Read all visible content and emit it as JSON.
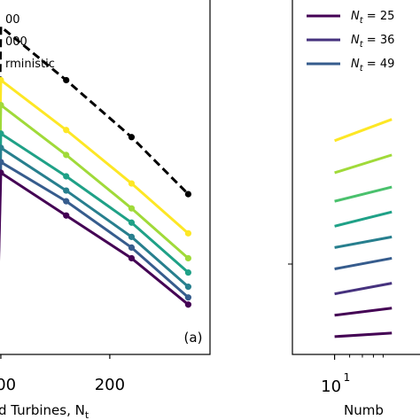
{
  "colors": {
    "yellow": "#fde725",
    "light_green": "#a0da39",
    "green": "#4ac16d",
    "teal": "#1fa187",
    "teal_blue": "#277f8e",
    "blue": "#365c8d",
    "indigo": "#46327e",
    "purple": "#440154",
    "black": "#000000"
  },
  "chart_data": [
    {
      "panel": "a",
      "type": "line",
      "panel_label": "(a)",
      "xlabel": "d Turbines, N",
      "xlabel_sub": "t",
      "xlim": [
        -3,
        240
      ],
      "ylim": [
        0,
        100
      ],
      "x_ticks": [
        {
          "value": 0,
          "label": "100"
        },
        {
          "value": 125,
          "label": "200"
        }
      ],
      "legend": {
        "placement": "top-left",
        "entries": [
          {
            "label": "00"
          },
          {
            "label": "000"
          },
          {
            "label": "rministic"
          }
        ]
      },
      "x": [
        0,
        75,
        150,
        215
      ],
      "series": [
        {
          "color": "black",
          "dashed": true,
          "start": 1,
          "y": [
            92,
            77,
            61,
            45
          ]
        },
        {
          "color": "yellow",
          "y": [
            77,
            63,
            48,
            34
          ]
        },
        {
          "color": "light_green",
          "y": [
            70,
            56,
            41,
            27
          ]
        },
        {
          "color": "teal",
          "y": [
            62,
            50,
            37,
            23
          ]
        },
        {
          "color": "teal_blue",
          "y": [
            58,
            46,
            33,
            19
          ]
        },
        {
          "color": "blue",
          "y": [
            54,
            43,
            30,
            16
          ]
        },
        {
          "color": "purple",
          "y": [
            51,
            39,
            27,
            14
          ]
        }
      ],
      "series_start_y": [
        41,
        36,
        31,
        28,
        25,
        23,
        21
      ]
    },
    {
      "panel": "b",
      "type": "line",
      "xlabel": "Numb",
      "xscale": "log",
      "xlim": [
        6,
        30
      ],
      "ylim": [
        0,
        100
      ],
      "x_ticks": [
        {
          "value": 10,
          "label": "10",
          "exponent": "1"
        }
      ],
      "legend": {
        "placement": "top-left",
        "entries": [
          {
            "label": "N",
            "sub": "t",
            "eq": " = 25",
            "color": "purple"
          },
          {
            "label": "N",
            "sub": "t",
            "eq": " = 36",
            "color": "indigo"
          },
          {
            "label": "N",
            "sub": "t",
            "eq": " = 49",
            "color": "blue"
          }
        ]
      },
      "x": [
        10,
        20
      ],
      "series": [
        {
          "color": "yellow",
          "y": [
            60,
            66
          ]
        },
        {
          "color": "light_green",
          "y": [
            51,
            56
          ]
        },
        {
          "color": "green",
          "y": [
            43,
            47
          ]
        },
        {
          "color": "teal",
          "y": [
            36,
            40
          ]
        },
        {
          "color": "teal_blue",
          "y": [
            30,
            33
          ]
        },
        {
          "color": "blue",
          "y": [
            24,
            27
          ]
        },
        {
          "color": "indigo",
          "y": [
            17,
            20
          ]
        },
        {
          "color": "purple",
          "y": [
            11,
            13
          ]
        },
        {
          "color": "purple",
          "y": [
            5,
            6
          ]
        }
      ]
    }
  ]
}
